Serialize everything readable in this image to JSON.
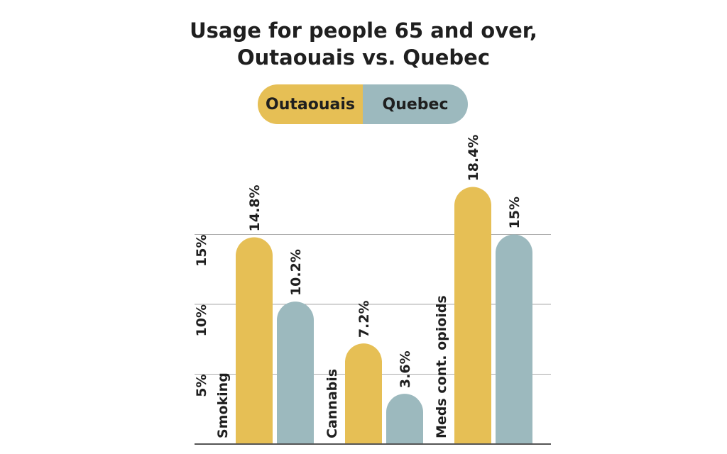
{
  "chart_data": {
    "type": "bar",
    "title_lines": [
      "Usage for people 65 and over,",
      "Outaouais vs. Quebec"
    ],
    "categories": [
      "Smoking",
      "Cannabis",
      "Meds cont. opioids"
    ],
    "series": [
      {
        "name": "Outaouais",
        "color": "#e6bf55",
        "values": [
          14.8,
          7.2,
          18.4
        ],
        "labels": [
          "14.8%",
          "7.2%",
          "18.4%"
        ]
      },
      {
        "name": "Quebec",
        "color": "#9cb9be",
        "values": [
          10.2,
          3.6,
          15
        ],
        "labels": [
          "10.2%",
          "3.6%",
          "15%"
        ]
      }
    ],
    "y_ticks": [
      {
        "value": 5,
        "label": "5%"
      },
      {
        "value": 10,
        "label": "10%"
      },
      {
        "value": 15,
        "label": "15%"
      }
    ],
    "ylim": [
      0,
      20
    ],
    "grid": true,
    "legend_position": "top-center"
  }
}
